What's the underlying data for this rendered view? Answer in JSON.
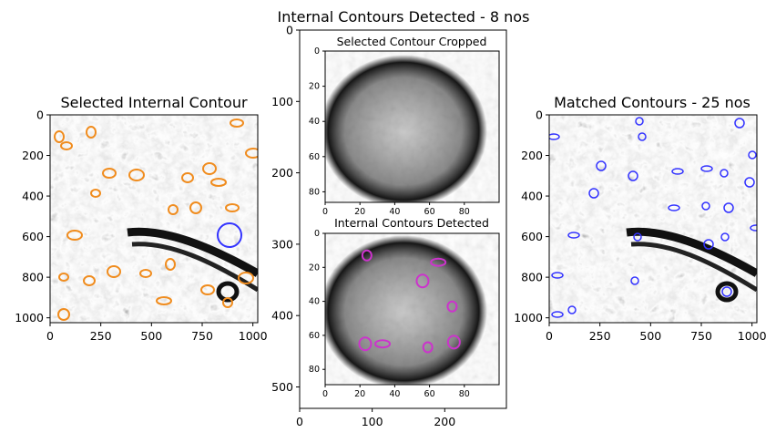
{
  "chart_data": [
    {
      "type": "image",
      "title": "Selected Internal Contour",
      "x_ticks": [
        "0",
        "250",
        "500",
        "750",
        "1000"
      ],
      "y_ticks": [
        "0",
        "200",
        "400",
        "600",
        "800",
        "1000"
      ],
      "xlim": [
        0,
        1024
      ],
      "ylim": [
        1024,
        0
      ],
      "colors": {
        "contours": "#f08c1e",
        "selected": "#3333ff"
      }
    },
    {
      "type": "image",
      "title": "Internal Contours Detected - 8 nos",
      "x_ticks": [
        "0",
        "100",
        "200"
      ],
      "y_ticks": [
        "0",
        "100",
        "200",
        "300",
        "400",
        "500"
      ],
      "xlim": [
        0,
        285
      ],
      "ylim": [
        530,
        0
      ],
      "insets": [
        {
          "title": "Selected Contour Cropped",
          "x_ticks": [
            "0",
            "20",
            "40",
            "60",
            "80"
          ],
          "y_ticks": [
            "0",
            "20",
            "40",
            "60",
            "80"
          ],
          "xlim": [
            0,
            100
          ],
          "ylim": [
            86,
            0
          ]
        },
        {
          "title": "Internal Contours Detected",
          "x_ticks": [
            "0",
            "20",
            "40",
            "60",
            "80"
          ],
          "y_ticks": [
            "0",
            "20",
            "40",
            "60",
            "80"
          ],
          "xlim": [
            0,
            100
          ],
          "ylim": [
            89,
            0
          ],
          "colors": {
            "contours": "#cc33cc"
          },
          "contours": [
            {
              "x": 24,
              "y": 13
            },
            {
              "x": 56,
              "y": 28
            },
            {
              "x": 65,
              "y": 17
            },
            {
              "x": 73,
              "y": 43
            },
            {
              "x": 23,
              "y": 65
            },
            {
              "x": 33,
              "y": 65
            },
            {
              "x": 59,
              "y": 67
            },
            {
              "x": 74,
              "y": 64
            }
          ]
        }
      ]
    },
    {
      "type": "image",
      "title": "Matched Contours - 25 nos",
      "x_ticks": [
        "0",
        "250",
        "500",
        "750",
        "1000"
      ],
      "y_ticks": [
        "0",
        "200",
        "400",
        "600",
        "800",
        "1000"
      ],
      "xlim": [
        0,
        1024
      ],
      "ylim": [
        1024,
        0
      ],
      "colors": {
        "contours": "#3333ff"
      }
    }
  ]
}
